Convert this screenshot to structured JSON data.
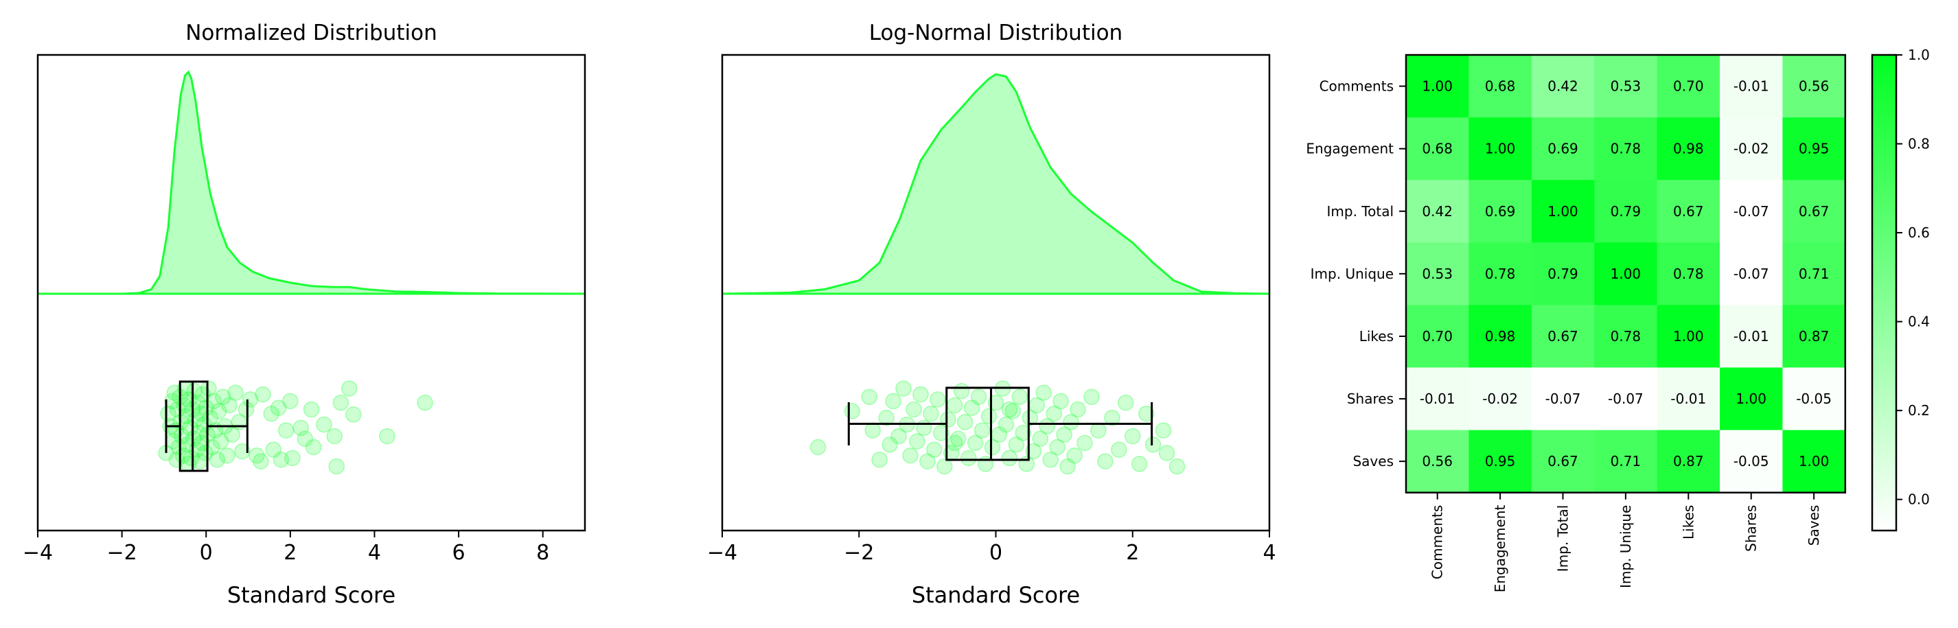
{
  "colors": {
    "accent": "#1aff33",
    "fill_light": "#b8ffc2",
    "point": "#1aff33",
    "box": "#000000",
    "heat_low": "#ffffff",
    "heat_high": "#00ff22"
  },
  "chart_data": [
    {
      "type": "area",
      "title": "Normalized Distribution",
      "xlabel": "Standard Score",
      "ylabel": "",
      "xlim": [
        -4,
        9
      ],
      "xticks": [
        -4,
        -2,
        0,
        2,
        4,
        6,
        8
      ],
      "xtick_labels": [
        "−4",
        "−2",
        "0",
        "2",
        "4",
        "6",
        "8"
      ],
      "grid": false,
      "density": {
        "x": [
          -4,
          -2,
          -1.6,
          -1.3,
          -1.1,
          -0.9,
          -0.75,
          -0.6,
          -0.5,
          -0.42,
          -0.35,
          -0.25,
          -0.1,
          0.1,
          0.3,
          0.5,
          0.8,
          1.1,
          1.5,
          2.0,
          2.5,
          3.0,
          3.4,
          3.8,
          4.5,
          5.2,
          6.0,
          7.0,
          9.0
        ],
        "y": [
          0,
          0.0,
          0.003,
          0.02,
          0.08,
          0.3,
          0.65,
          0.9,
          0.985,
          1.0,
          0.97,
          0.87,
          0.66,
          0.45,
          0.31,
          0.21,
          0.14,
          0.1,
          0.07,
          0.05,
          0.035,
          0.03,
          0.03,
          0.02,
          0.01,
          0.008,
          0.003,
          0.001,
          0
        ]
      },
      "box": {
        "whisker_low": -0.95,
        "q1": -0.62,
        "median": -0.32,
        "q3": 0.03,
        "whisker_high": 0.98
      },
      "points": [
        [
          -0.95,
          0.82
        ],
        [
          -0.9,
          0.35
        ],
        [
          -0.85,
          0.5
        ],
        [
          -0.8,
          0.2
        ],
        [
          -0.78,
          0.68
        ],
        [
          -0.75,
          0.1
        ],
        [
          -0.72,
          0.55
        ],
        [
          -0.7,
          0.9
        ],
        [
          -0.68,
          0.3
        ],
        [
          -0.65,
          0.75
        ],
        [
          -0.62,
          0.15
        ],
        [
          -0.6,
          0.45
        ],
        [
          -0.58,
          0.62
        ],
        [
          -0.55,
          0.85
        ],
        [
          -0.52,
          0.25
        ],
        [
          -0.5,
          0.05
        ],
        [
          -0.48,
          0.38
        ],
        [
          -0.45,
          0.72
        ],
        [
          -0.42,
          0.95
        ],
        [
          -0.4,
          0.18
        ],
        [
          -0.38,
          0.52
        ],
        [
          -0.35,
          0.88
        ],
        [
          -0.32,
          0.3
        ],
        [
          -0.3,
          0.65
        ],
        [
          -0.28,
          0.08
        ],
        [
          -0.25,
          0.42
        ],
        [
          -0.22,
          0.78
        ],
        [
          -0.2,
          0.22
        ],
        [
          -0.18,
          0.58
        ],
        [
          -0.15,
          0.92
        ],
        [
          -0.12,
          0.35
        ],
        [
          -0.1,
          0.7
        ],
        [
          -0.08,
          0.12
        ],
        [
          -0.05,
          0.48
        ],
        [
          -0.02,
          0.82
        ],
        [
          0.0,
          0.28
        ],
        [
          0.03,
          0.6
        ],
        [
          0.06,
          0.05
        ],
        [
          0.1,
          0.4
        ],
        [
          0.14,
          0.75
        ],
        [
          0.18,
          0.2
        ],
        [
          0.22,
          0.55
        ],
        [
          0.26,
          0.9
        ],
        [
          0.3,
          0.32
        ],
        [
          0.35,
          0.68
        ],
        [
          0.4,
          0.15
        ],
        [
          0.45,
          0.5
        ],
        [
          0.5,
          0.85
        ],
        [
          0.55,
          0.25
        ],
        [
          0.62,
          0.6
        ],
        [
          0.7,
          0.1
        ],
        [
          0.78,
          0.45
        ],
        [
          0.86,
          0.8
        ],
        [
          0.95,
          0.3
        ],
        [
          1.05,
          0.18
        ],
        [
          1.2,
          0.85
        ],
        [
          1.3,
          0.92
        ],
        [
          1.35,
          0.12
        ],
        [
          1.55,
          0.35
        ],
        [
          1.6,
          0.78
        ],
        [
          1.72,
          0.28
        ],
        [
          1.78,
          0.9
        ],
        [
          1.9,
          0.55
        ],
        [
          2.0,
          0.2
        ],
        [
          2.05,
          0.88
        ],
        [
          2.25,
          0.52
        ],
        [
          2.35,
          0.65
        ],
        [
          2.5,
          0.3
        ],
        [
          2.55,
          0.75
        ],
        [
          2.8,
          0.48
        ],
        [
          3.1,
          0.98
        ],
        [
          3.05,
          0.62
        ],
        [
          3.2,
          0.22
        ],
        [
          3.5,
          0.36
        ],
        [
          3.4,
          0.05
        ],
        [
          4.3,
          0.62
        ],
        [
          5.2,
          0.22
        ]
      ]
    },
    {
      "type": "area",
      "title": "Log-Normal Distribution",
      "xlabel": "Standard Score",
      "ylabel": "",
      "xlim": [
        -4,
        4
      ],
      "xticks": [
        -4,
        -2,
        0,
        2,
        4
      ],
      "xtick_labels": [
        "−4",
        "−2",
        "0",
        "2",
        "4"
      ],
      "grid": false,
      "density": {
        "x": [
          -4,
          -3,
          -2.5,
          -2.0,
          -1.7,
          -1.4,
          -1.1,
          -0.8,
          -0.5,
          -0.3,
          -0.1,
          0.0,
          0.15,
          0.3,
          0.5,
          0.8,
          1.1,
          1.4,
          1.7,
          2.0,
          2.3,
          2.6,
          3.0,
          3.5,
          4.0
        ],
        "y": [
          0,
          0.005,
          0.02,
          0.06,
          0.14,
          0.34,
          0.6,
          0.74,
          0.84,
          0.91,
          0.97,
          0.99,
          0.98,
          0.91,
          0.75,
          0.57,
          0.45,
          0.37,
          0.3,
          0.23,
          0.14,
          0.06,
          0.01,
          0.002,
          0
        ]
      },
      "box": {
        "whisker_low": -2.15,
        "q1": -0.72,
        "median": -0.07,
        "q3": 0.48,
        "whisker_high": 2.28
      },
      "points": [
        [
          -2.6,
          0.75
        ],
        [
          -2.1,
          0.32
        ],
        [
          -1.85,
          0.15
        ],
        [
          -1.8,
          0.55
        ],
        [
          -1.7,
          0.9
        ],
        [
          -1.6,
          0.4
        ],
        [
          -1.55,
          0.72
        ],
        [
          -1.5,
          0.2
        ],
        [
          -1.42,
          0.62
        ],
        [
          -1.35,
          0.05
        ],
        [
          -1.3,
          0.48
        ],
        [
          -1.25,
          0.85
        ],
        [
          -1.2,
          0.3
        ],
        [
          -1.15,
          0.68
        ],
        [
          -1.1,
          0.12
        ],
        [
          -1.05,
          0.52
        ],
        [
          -1.0,
          0.92
        ],
        [
          -0.95,
          0.35
        ],
        [
          -0.9,
          0.78
        ],
        [
          -0.85,
          0.18
        ],
        [
          -0.8,
          0.58
        ],
        [
          -0.75,
          0.98
        ],
        [
          -0.7,
          0.42
        ],
        [
          -0.65,
          0.82
        ],
        [
          -0.6,
          0.25
        ],
        [
          -0.55,
          0.65
        ],
        [
          -0.5,
          0.08
        ],
        [
          -0.45,
          0.45
        ],
        [
          -0.4,
          0.88
        ],
        [
          -0.35,
          0.28
        ],
        [
          -0.3,
          0.7
        ],
        [
          -0.25,
          0.15
        ],
        [
          -0.2,
          0.55
        ],
        [
          -0.15,
          0.95
        ],
        [
          -0.1,
          0.38
        ],
        [
          -0.05,
          0.75
        ],
        [
          0.0,
          0.22
        ],
        [
          0.05,
          0.6
        ],
        [
          0.1,
          0.05
        ],
        [
          0.15,
          0.48
        ],
        [
          0.2,
          0.88
        ],
        [
          0.25,
          0.32
        ],
        [
          0.3,
          0.72
        ],
        [
          0.35,
          0.15
        ],
        [
          0.4,
          0.58
        ],
        [
          0.45,
          0.95
        ],
        [
          0.5,
          0.4
        ],
        [
          0.55,
          0.8
        ],
        [
          0.6,
          0.25
        ],
        [
          0.65,
          0.65
        ],
        [
          0.7,
          0.1
        ],
        [
          0.75,
          0.5
        ],
        [
          0.8,
          0.9
        ],
        [
          0.85,
          0.35
        ],
        [
          0.9,
          0.75
        ],
        [
          0.95,
          0.2
        ],
        [
          1.0,
          0.6
        ],
        [
          1.05,
          0.98
        ],
        [
          1.1,
          0.45
        ],
        [
          1.15,
          0.85
        ],
        [
          1.2,
          0.3
        ],
        [
          1.3,
          0.7
        ],
        [
          1.4,
          0.15
        ],
        [
          1.5,
          0.55
        ],
        [
          1.6,
          0.92
        ],
        [
          1.7,
          0.4
        ],
        [
          1.8,
          0.78
        ],
        [
          1.9,
          0.22
        ],
        [
          2.0,
          0.62
        ],
        [
          2.1,
          0.95
        ],
        [
          2.2,
          0.35
        ],
        [
          2.3,
          0.72
        ],
        [
          2.45,
          0.55
        ],
        [
          2.5,
          0.82
        ],
        [
          2.65,
          0.98
        ],
        [
          -0.6,
          0.7
        ],
        [
          0.2,
          0.3
        ]
      ]
    },
    {
      "type": "heatmap",
      "title": "",
      "row_labels": [
        "Comments",
        "Engagement",
        "Imp. Total",
        "Imp. Unique",
        "Likes",
        "Shares",
        "Saves"
      ],
      "col_labels": [
        "Comments",
        "Engagement",
        "Imp. Total",
        "Imp. Unique",
        "Likes",
        "Shares",
        "Saves"
      ],
      "values": [
        [
          1.0,
          0.68,
          0.42,
          0.53,
          0.7,
          -0.01,
          0.56
        ],
        [
          0.68,
          1.0,
          0.69,
          0.78,
          0.98,
          -0.02,
          0.95
        ],
        [
          0.42,
          0.69,
          1.0,
          0.79,
          0.67,
          -0.07,
          0.67
        ],
        [
          0.53,
          0.78,
          0.79,
          1.0,
          0.78,
          -0.07,
          0.71
        ],
        [
          0.7,
          0.98,
          0.67,
          0.78,
          1.0,
          -0.01,
          0.87
        ],
        [
          -0.01,
          -0.02,
          -0.07,
          -0.07,
          -0.01,
          1.0,
          -0.05
        ],
        [
          0.56,
          0.95,
          0.67,
          0.71,
          0.87,
          -0.05,
          1.0
        ]
      ],
      "value_labels": [
        [
          "1.00",
          "0.68",
          "0.42",
          "0.53",
          "0.70",
          "-0.01",
          "0.56"
        ],
        [
          "0.68",
          "1.00",
          "0.69",
          "0.78",
          "0.98",
          "-0.02",
          "0.95"
        ],
        [
          "0.42",
          "0.69",
          "1.00",
          "0.79",
          "0.67",
          "-0.07",
          "0.67"
        ],
        [
          "0.53",
          "0.78",
          "0.79",
          "1.00",
          "0.78",
          "-0.07",
          "0.71"
        ],
        [
          "0.70",
          "0.98",
          "0.67",
          "0.78",
          "1.00",
          "-0.01",
          "0.87"
        ],
        [
          "-0.01",
          "-0.02",
          "-0.07",
          "-0.07",
          "-0.01",
          "1.00",
          "-0.05"
        ],
        [
          "0.56",
          "0.95",
          "0.67",
          "0.71",
          "0.87",
          "-0.05",
          "1.00"
        ]
      ],
      "vmin": -0.07,
      "vmax": 1.0,
      "colorbar_ticks": [
        0.0,
        0.2,
        0.4,
        0.6,
        0.8,
        1.0
      ],
      "colorbar_tick_labels": [
        "0.0",
        "0.2",
        "0.4",
        "0.6",
        "0.8",
        "1.0"
      ]
    }
  ]
}
